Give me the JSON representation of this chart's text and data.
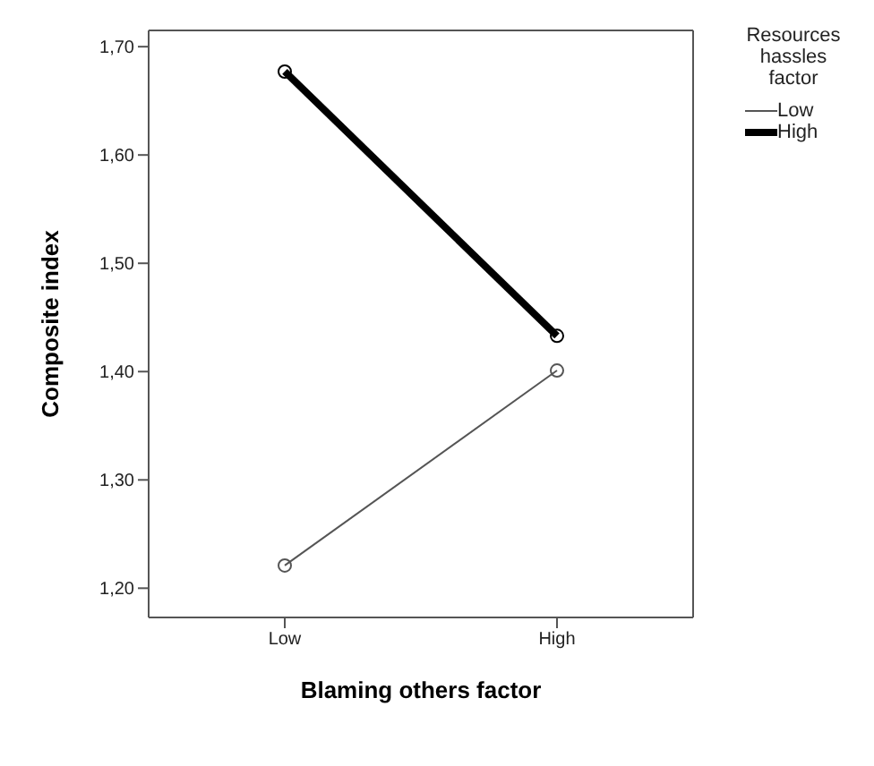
{
  "chart_data": {
    "type": "line",
    "xlabel": "Blaming others factor",
    "ylabel": "Composite index",
    "legend_title": "Resources hassles factor",
    "categories": [
      "Low",
      "High"
    ],
    "series": [
      {
        "name": "Low",
        "color": "#555555",
        "values": [
          1.221,
          1.401
        ]
      },
      {
        "name": "High",
        "color": "#000000",
        "values": [
          1.677,
          1.433
        ]
      }
    ],
    "ylim": [
      1.173,
      1.715
    ],
    "yticks": [
      {
        "value": 1.2,
        "label": "1,20"
      },
      {
        "value": 1.3,
        "label": "1,30"
      },
      {
        "value": 1.4,
        "label": "1,40"
      },
      {
        "value": 1.5,
        "label": "1,50"
      },
      {
        "value": 1.6,
        "label": "1,60"
      },
      {
        "value": 1.7,
        "label": "1,70"
      }
    ],
    "marker": "circle",
    "legend": "top right",
    "grid": false
  }
}
